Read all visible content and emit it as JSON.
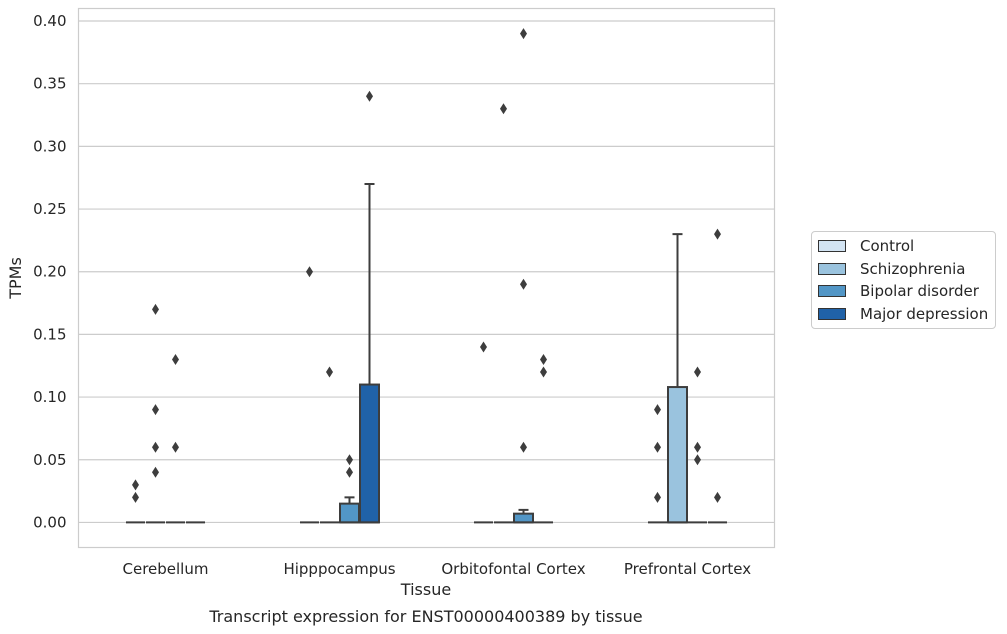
{
  "chart_data": {
    "type": "box",
    "title": "",
    "caption": "Transcript expression for ENST00000400389 by tissue",
    "xlabel": "Tissue",
    "ylabel": "TPMs",
    "ylim": [
      -0.02,
      0.41
    ],
    "yticks": [
      "0.00",
      "0.05",
      "0.10",
      "0.15",
      "0.20",
      "0.25",
      "0.30",
      "0.35",
      "0.40"
    ],
    "ytick_values": [
      0,
      0.05,
      0.1,
      0.15,
      0.2,
      0.25,
      0.3,
      0.35,
      0.4
    ],
    "grid": true,
    "legend_position": "right",
    "categories": [
      "Cerebellum",
      "Hipppocampus",
      "Orbitofontal Cortex",
      "Prefrontal Cortex"
    ],
    "series": [
      {
        "name": "Control",
        "color": "#d3e4f3",
        "boxes": [
          {
            "q1": 0,
            "median": 0,
            "q3": 0,
            "whisker_low": 0,
            "whisker_high": 0,
            "outliers": [
              0.02,
              0.03
            ]
          },
          {
            "q1": 0,
            "median": 0,
            "q3": 0,
            "whisker_low": 0,
            "whisker_high": 0,
            "outliers": [
              0.2
            ]
          },
          {
            "q1": 0,
            "median": 0,
            "q3": 0,
            "whisker_low": 0,
            "whisker_high": 0,
            "outliers": [
              0.14
            ]
          },
          {
            "q1": 0,
            "median": 0,
            "q3": 0,
            "whisker_low": 0,
            "whisker_high": 0,
            "outliers": [
              0.02,
              0.06,
              0.09
            ]
          }
        ]
      },
      {
        "name": "Schizophrenia",
        "color": "#9ac3de",
        "boxes": [
          {
            "q1": 0,
            "median": 0,
            "q3": 0,
            "whisker_low": 0,
            "whisker_high": 0,
            "outliers": [
              0.04,
              0.06,
              0.09,
              0.17
            ]
          },
          {
            "q1": 0,
            "median": 0,
            "q3": 0,
            "whisker_low": 0,
            "whisker_high": 0,
            "outliers": [
              0.12
            ]
          },
          {
            "q1": 0,
            "median": 0,
            "q3": 0,
            "whisker_low": 0,
            "whisker_high": 0,
            "outliers": [
              0.33
            ]
          },
          {
            "q1": 0,
            "median": 0,
            "q3": 0.108,
            "whisker_low": 0,
            "whisker_high": 0.23,
            "outliers": []
          }
        ]
      },
      {
        "name": "Bipolar disorder",
        "color": "#5296c6",
        "boxes": [
          {
            "q1": 0,
            "median": 0,
            "q3": 0,
            "whisker_low": 0,
            "whisker_high": 0,
            "outliers": [
              0.06,
              0.13
            ]
          },
          {
            "q1": 0,
            "median": 0,
            "q3": 0.015,
            "whisker_low": 0,
            "whisker_high": 0.02,
            "outliers": [
              0.04,
              0.05
            ]
          },
          {
            "q1": 0,
            "median": 0,
            "q3": 0.007,
            "whisker_low": 0,
            "whisker_high": 0.01,
            "outliers": [
              0.06,
              0.19,
              0.39
            ]
          },
          {
            "q1": 0,
            "median": 0,
            "q3": 0,
            "whisker_low": 0,
            "whisker_high": 0,
            "outliers": [
              0.05,
              0.06,
              0.12
            ]
          }
        ]
      },
      {
        "name": "Major depression",
        "color": "#2062a8",
        "boxes": [
          {
            "q1": 0,
            "median": 0,
            "q3": 0,
            "whisker_low": 0,
            "whisker_high": 0,
            "outliers": []
          },
          {
            "q1": 0,
            "median": 0,
            "q3": 0.11,
            "whisker_low": 0,
            "whisker_high": 0.27,
            "outliers": [
              0.34
            ]
          },
          {
            "q1": 0,
            "median": 0,
            "q3": 0,
            "whisker_low": 0,
            "whisker_high": 0,
            "outliers": [
              0.12,
              0.13
            ]
          },
          {
            "q1": 0,
            "median": 0,
            "q3": 0,
            "whisker_low": 0,
            "whisker_high": 0,
            "outliers": [
              0.02,
              0.23
            ]
          }
        ]
      }
    ]
  }
}
